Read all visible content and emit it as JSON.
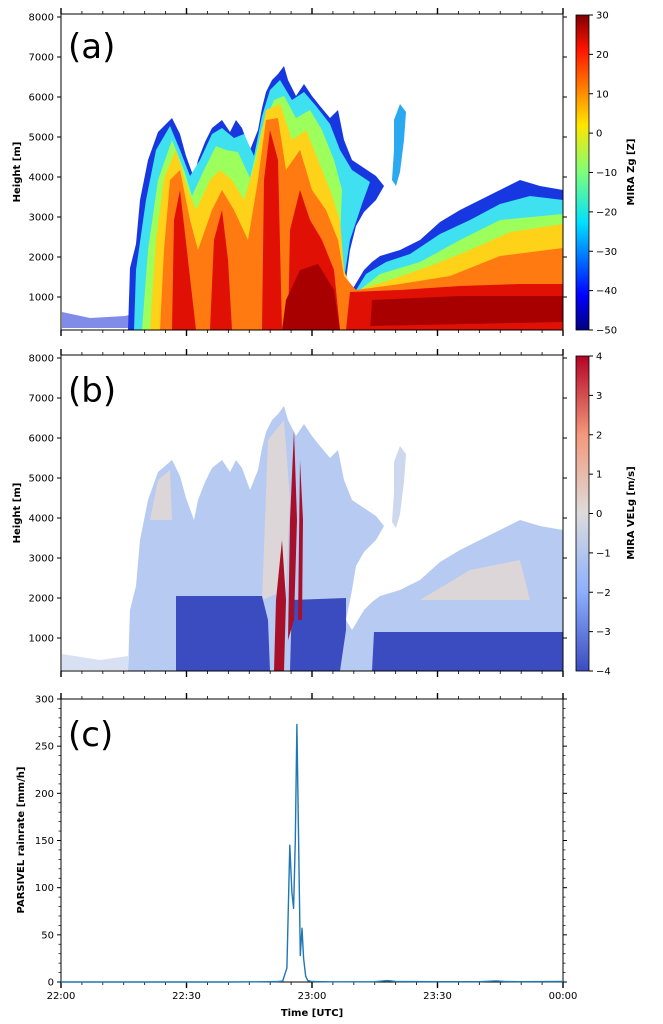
{
  "chart_data": [
    {
      "type": "heatmap",
      "panel_label": "(a)",
      "ylabel": "Height [m]",
      "ylim": [
        0,
        8000
      ],
      "yticks": [
        1000,
        2000,
        3000,
        4000,
        5000,
        6000,
        7000,
        8000
      ],
      "xlim_minutes": [
        0,
        120
      ],
      "colorbar": {
        "label": "MIRA Zg [Z]",
        "range": [
          -50,
          30
        ],
        "ticks": [
          30,
          20,
          10,
          0,
          -10,
          -20,
          -30,
          -40,
          -50
        ],
        "tick_labels": [
          "30",
          "20",
          "10",
          "0",
          "−10",
          "−20",
          "−30",
          "−40",
          "−50"
        ],
        "colormap": "jet"
      }
    },
    {
      "type": "heatmap",
      "panel_label": "(b)",
      "ylabel": "Height [m]",
      "ylim": [
        0,
        8000
      ],
      "yticks": [
        1000,
        2000,
        3000,
        4000,
        5000,
        6000,
        7000,
        8000
      ],
      "xlim_minutes": [
        0,
        120
      ],
      "colorbar": {
        "label": "MIRA VELg [m/s]",
        "range": [
          -4,
          4
        ],
        "ticks": [
          4,
          3,
          2,
          1,
          0,
          -1,
          -2,
          -3,
          -4
        ],
        "tick_labels": [
          "4",
          "3",
          "2",
          "1",
          "0",
          "−1",
          "−2",
          "−3",
          "−4"
        ],
        "colormap": "coolwarm"
      }
    },
    {
      "type": "line",
      "panel_label": "(c)",
      "ylabel": "PARSIVEL rainrate [mm/h]",
      "xlabel": "Time [UTC]",
      "ylim": [
        0,
        300
      ],
      "yticks": [
        0,
        50,
        100,
        150,
        200,
        250,
        300
      ],
      "xlim_minutes": [
        0,
        120
      ],
      "xtick_minutes": [
        0,
        30,
        60,
        90,
        120
      ],
      "xtick_labels": [
        "22:00",
        "22:30",
        "23:00",
        "23:30",
        "00:00"
      ],
      "series": [
        {
          "name": "PARSIVEL rainrate",
          "color": "#1f77b4",
          "x_minutes": [
            0,
            20,
            40,
            50,
            52,
            53,
            54,
            54.7,
            55.2,
            55.6,
            56.0,
            56.4,
            56.8,
            57.2,
            57.6,
            58.0,
            58.5,
            59.0,
            60,
            62,
            65,
            75,
            78,
            80,
            90,
            100,
            104,
            106,
            110,
            120
          ],
          "values": [
            0,
            0,
            0,
            0.3,
            0.5,
            1,
            15,
            145,
            95,
            78,
            150,
            273,
            150,
            28,
            57,
            25,
            6,
            1.5,
            0.5,
            0.3,
            0.2,
            0.3,
            1.5,
            0.5,
            0.3,
            0.3,
            1.2,
            0.5,
            0.3,
            0.5
          ]
        }
      ]
    }
  ]
}
